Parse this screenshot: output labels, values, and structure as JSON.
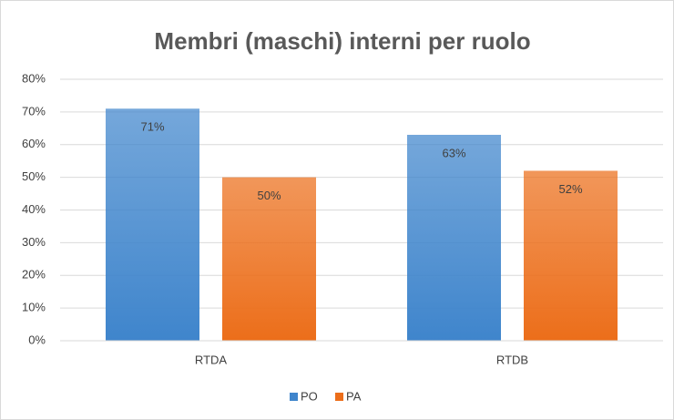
{
  "chart_data": {
    "type": "bar",
    "title": "Membri (maschi) interni per ruolo",
    "categories": [
      "RTDA",
      "RTDB"
    ],
    "series": [
      {
        "name": "PO",
        "color": "#3f85cc",
        "values": [
          71,
          63
        ],
        "value_labels": [
          "71%",
          "63%"
        ]
      },
      {
        "name": "PA",
        "color": "#ec6e1a",
        "values": [
          50,
          52
        ],
        "value_labels": [
          "50%",
          "52%"
        ]
      }
    ],
    "ylim": [
      0,
      80
    ],
    "yticks": [
      {
        "value": 0,
        "label": "0%"
      },
      {
        "value": 10,
        "label": "10%"
      },
      {
        "value": 20,
        "label": "20%"
      },
      {
        "value": 30,
        "label": "30%"
      },
      {
        "value": 40,
        "label": "40%"
      },
      {
        "value": 50,
        "label": "50%"
      },
      {
        "value": 60,
        "label": "60%"
      },
      {
        "value": 70,
        "label": "70%"
      },
      {
        "value": 80,
        "label": "80%"
      }
    ],
    "grid": true,
    "legend": "bottom"
  }
}
